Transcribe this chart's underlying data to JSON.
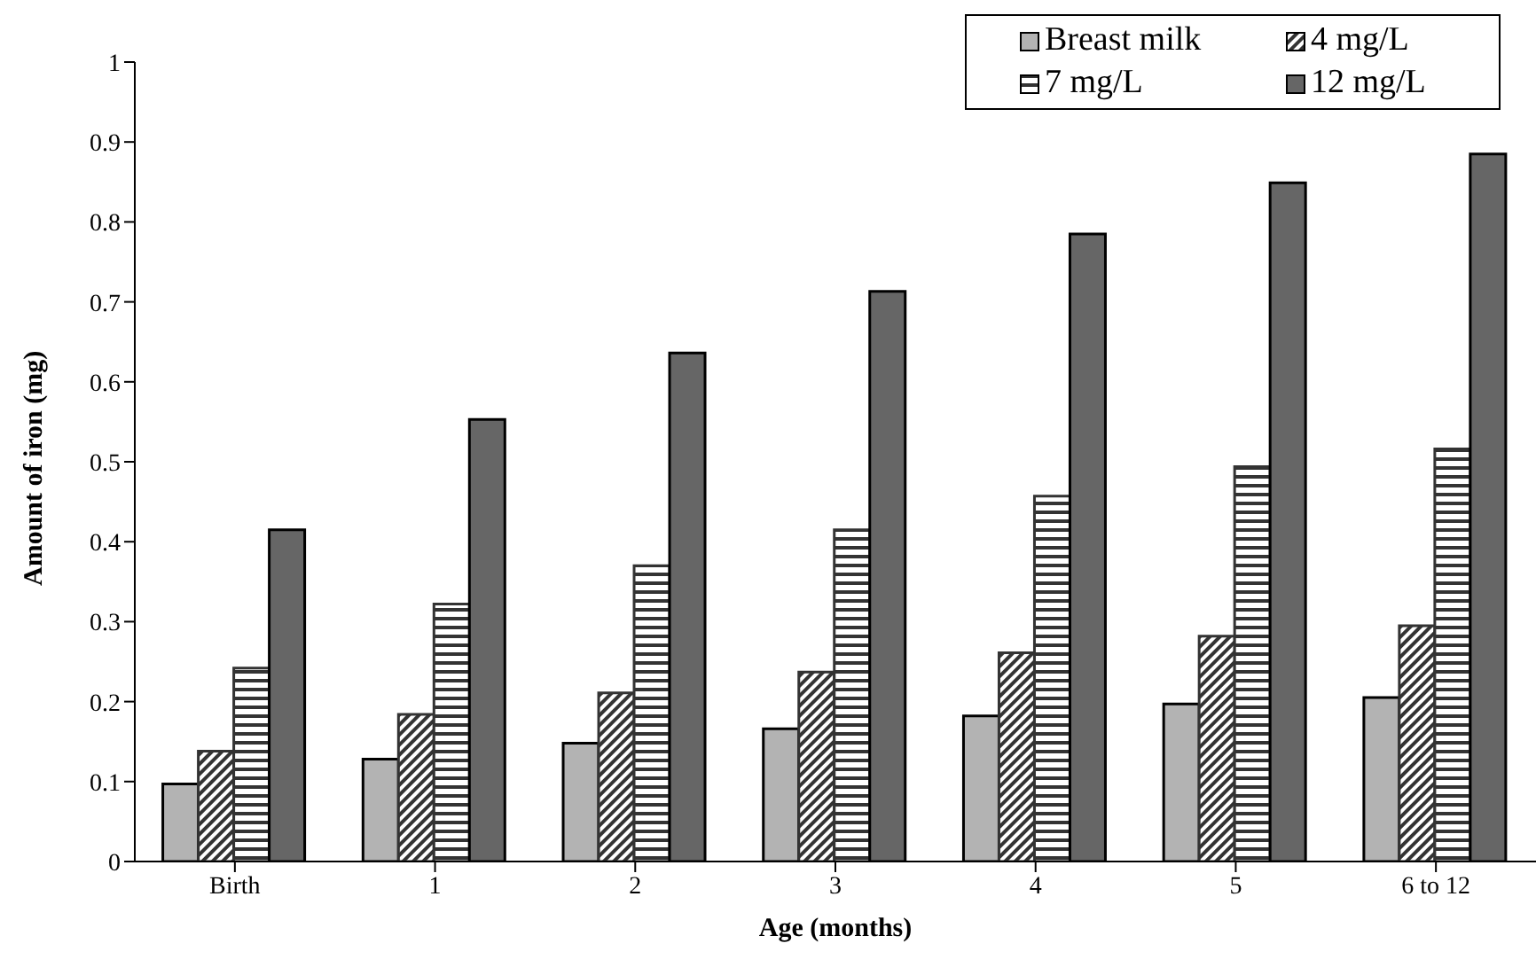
{
  "chart_data": {
    "type": "bar",
    "xlabel": "Age (months)",
    "ylabel": "Amount of iron (mg)",
    "categories": [
      "Birth",
      "1",
      "2",
      "3",
      "4",
      "5",
      "6 to 12"
    ],
    "series": [
      {
        "name": "Breast milk",
        "color": "#b3b3b3",
        "values": [
          0.097,
          0.128,
          0.148,
          0.166,
          0.182,
          0.197,
          0.205
        ]
      },
      {
        "name": "4 mg/L",
        "color": "#333333",
        "values": [
          0.138,
          0.184,
          0.211,
          0.237,
          0.261,
          0.282,
          0.295
        ]
      },
      {
        "name": "7 mg/L",
        "color": "#333333",
        "values": [
          0.242,
          0.322,
          0.37,
          0.415,
          0.457,
          0.494,
          0.516
        ]
      },
      {
        "name": "12 mg/L",
        "color": "#666666",
        "values": [
          0.415,
          0.553,
          0.636,
          0.713,
          0.785,
          0.849,
          0.885
        ]
      }
    ],
    "ylim": [
      0,
      1
    ],
    "yticks": [
      0,
      0.1,
      0.2,
      0.3,
      0.4,
      0.5,
      0.6,
      0.7,
      0.8,
      0.9,
      1
    ],
    "grid": false,
    "legend": "top right"
  }
}
